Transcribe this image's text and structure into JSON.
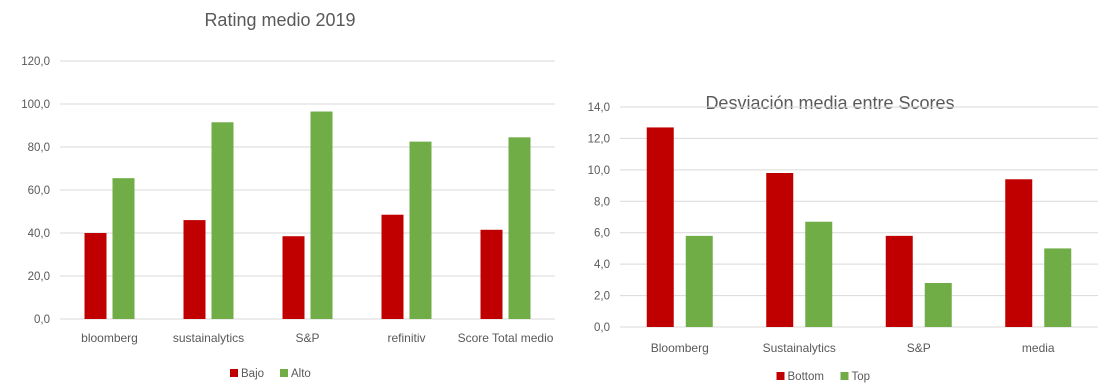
{
  "chart_data": [
    {
      "type": "bar",
      "title": "Rating medio 2019",
      "categories": [
        "bloomberg",
        "sustainalytics",
        "S&P",
        "refinitiv",
        "Score Total medio"
      ],
      "series": [
        {
          "name": "Bajo",
          "values": [
            40.0,
            46.0,
            38.5,
            48.5,
            41.5
          ],
          "color": "#c00000"
        },
        {
          "name": "Alto",
          "values": [
            65.5,
            91.5,
            96.5,
            82.5,
            84.5
          ],
          "color": "#70ad47"
        }
      ],
      "ylim": [
        0,
        120
      ],
      "yticks": [
        "0,0",
        "20,0",
        "40,0",
        "60,0",
        "80,0",
        "100,0",
        "120,0"
      ],
      "grid": true,
      "legend": "bottom"
    },
    {
      "type": "bar",
      "title": "Desviación media entre Scores",
      "categories": [
        "Bloomberg",
        "Sustainalytics",
        "S&P",
        "media"
      ],
      "series": [
        {
          "name": "Bottom",
          "values": [
            12.7,
            9.8,
            5.8,
            9.4
          ],
          "color": "#c00000"
        },
        {
          "name": "Top",
          "values": [
            5.8,
            6.7,
            2.8,
            5.0
          ],
          "color": "#70ad47"
        }
      ],
      "ylim": [
        0,
        14
      ],
      "yticks": [
        "0,0",
        "2,0",
        "4,0",
        "6,0",
        "8,0",
        "10,0",
        "12,0",
        "14,0"
      ],
      "grid": true,
      "legend": "bottom"
    }
  ]
}
